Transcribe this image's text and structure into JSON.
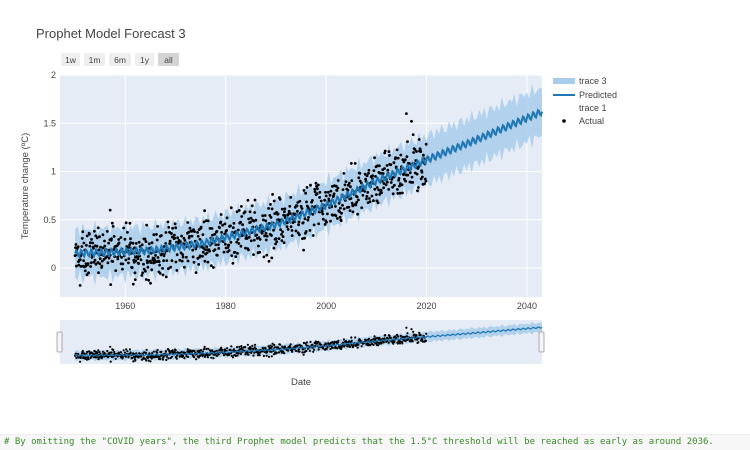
{
  "chart_data": {
    "type": "line",
    "title": "Prophet Model Forecast 3",
    "xlabel": "Date",
    "ylabel": "Temperature change (ºC)",
    "xlim": [
      1947,
      2043
    ],
    "ylim": [
      -0.3,
      2.0
    ],
    "x_ticks": [
      1960,
      1980,
      2000,
      2020,
      2040
    ],
    "y_ticks": [
      0,
      0.5,
      1,
      1.5,
      2
    ],
    "y_tick_labels": [
      "0",
      "0.5",
      "1",
      "1.5",
      "2"
    ],
    "range_selector": [
      "1w",
      "1m",
      "6m",
      "1y",
      "all"
    ],
    "range_selector_active": "all",
    "legend_position": "top-right",
    "series": [
      {
        "name": "trace 3",
        "kind": "uncertainty band",
        "color": "#a8cdeb"
      },
      {
        "name": "Predicted",
        "kind": "line",
        "color": "#1f77b4"
      },
      {
        "name": "trace 1",
        "kind": "band lower bound",
        "color": "#a8cdeb"
      },
      {
        "name": "Actual",
        "kind": "scatter",
        "color": "#000000"
      }
    ],
    "predicted_trend": {
      "x": [
        1950,
        1965,
        1975,
        1990,
        2000,
        2010,
        2020,
        2030,
        2043
      ],
      "y": [
        0.15,
        0.18,
        0.25,
        0.45,
        0.65,
        0.9,
        1.12,
        1.33,
        1.62
      ]
    },
    "band_halfwidth": 0.25,
    "actual_points": {
      "x_start": 1950,
      "x_end": 2020,
      "points_per_year": 12,
      "scatter_sd": 0.13,
      "outliers": [
        {
          "x": 1957,
          "y": 0.6
        },
        {
          "x": 1951,
          "y": -0.18
        },
        {
          "x": 1962,
          "y": -0.12
        },
        {
          "x": 2016,
          "y": 1.6
        },
        {
          "x": 2017,
          "y": 1.52
        }
      ]
    }
  },
  "footer_code_text": "# By omitting the \"COVID years\", the third Prophet model predicts that the 1.5°C threshold will be reached as early as around 2036."
}
